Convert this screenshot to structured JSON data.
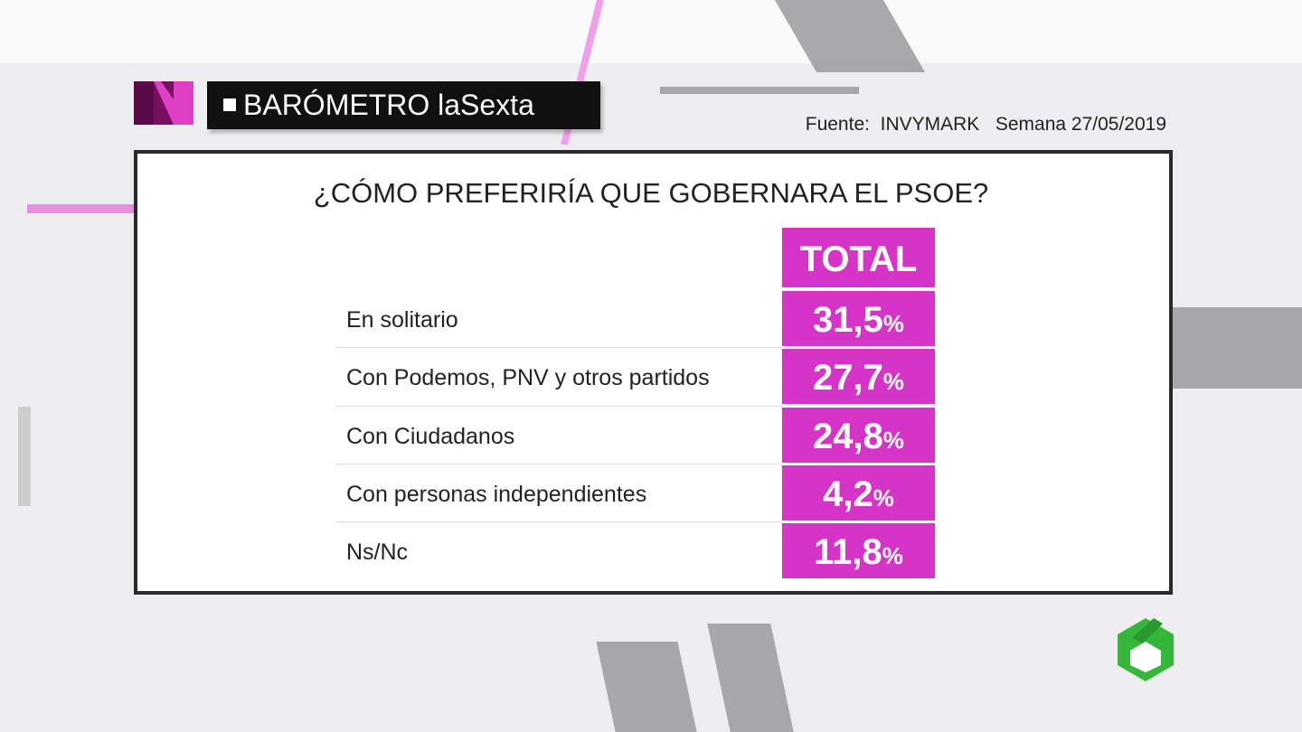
{
  "header": {
    "title": "BARÓMETRO laSexta",
    "source": "Fuente:  INVYMARK",
    "week": "Semana 27/05/2019"
  },
  "question": "¿CÓMO PREFERIRÍA QUE GOBERNARA EL PSOE?",
  "table": {
    "column": "TOTAL",
    "rows": [
      {
        "label": "En solitario",
        "number": "31,5",
        "unit": "%"
      },
      {
        "label": "Con Podemos, PNV y otros partidos",
        "number": "27,7",
        "unit": "%"
      },
      {
        "label": "Con Ciudadanos",
        "number": "24,8",
        "unit": "%"
      },
      {
        "label": "Con personas  independientes",
        "number": "4,2",
        "unit": "%"
      },
      {
        "label": "Ns/Nc",
        "number": "11,8",
        "unit": "%"
      }
    ]
  }
}
